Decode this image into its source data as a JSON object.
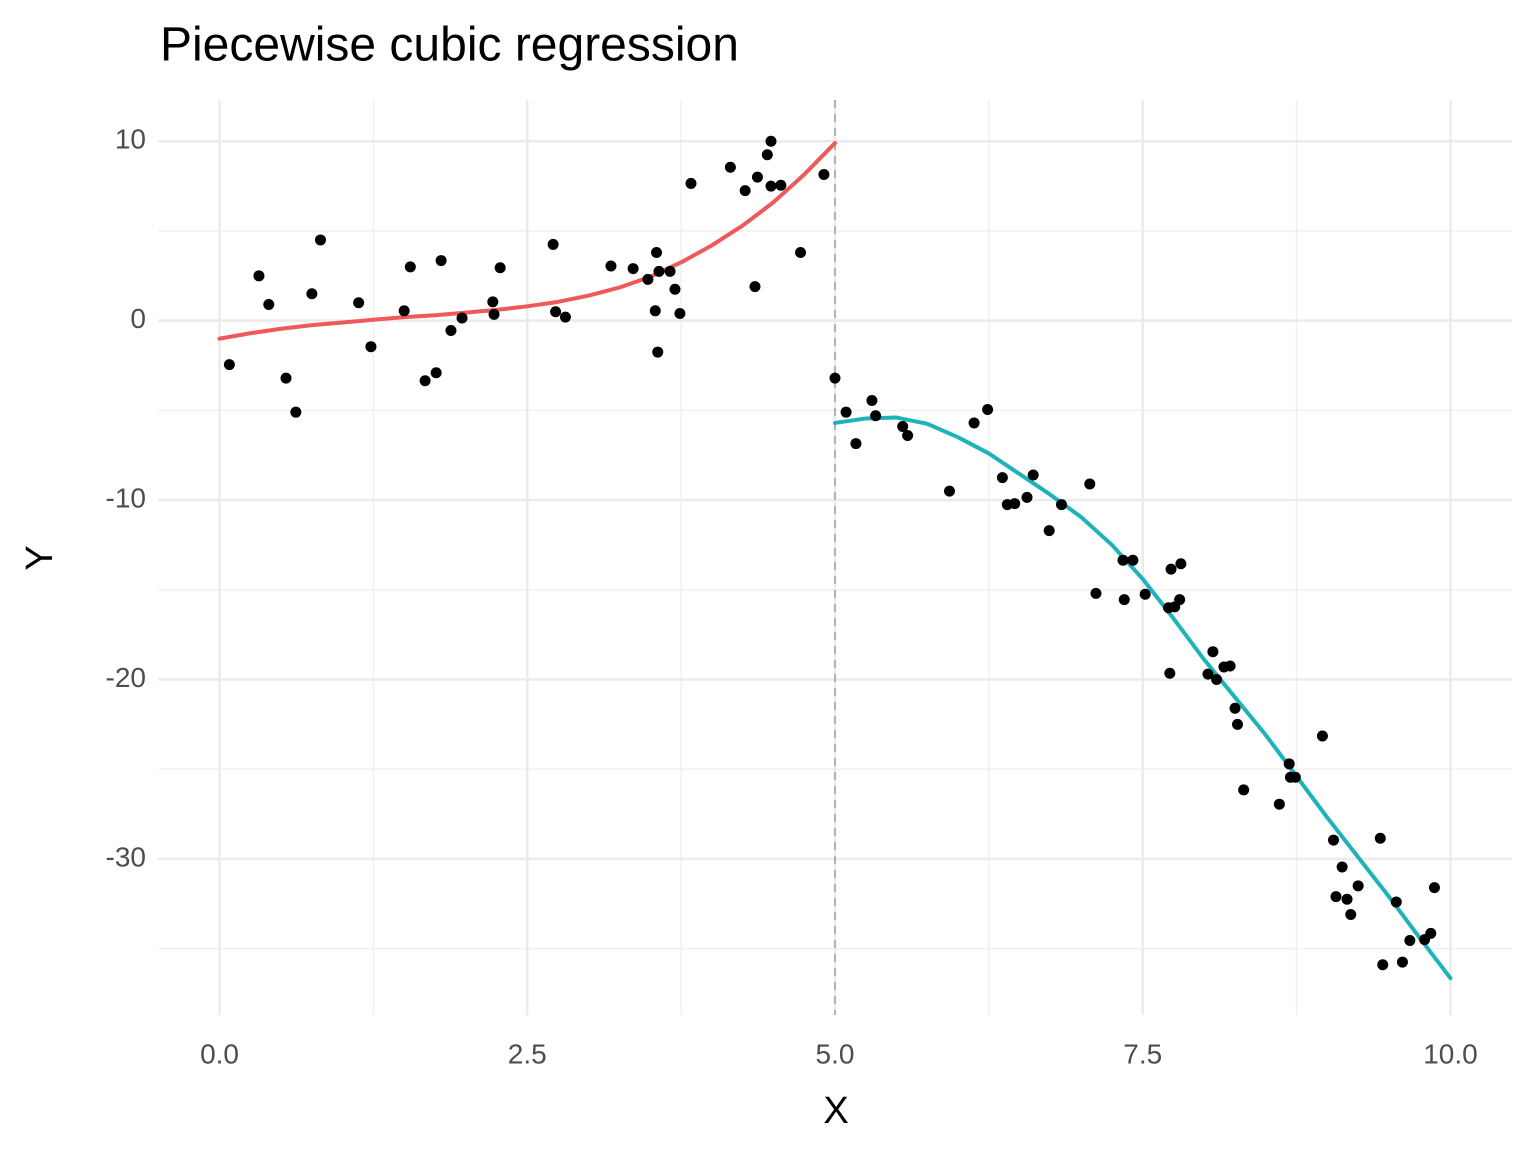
{
  "chart_data": {
    "type": "scatter",
    "title": "Piecewise cubic regression",
    "x_label": "X",
    "y_label": "Y",
    "xlim": [
      -0.5,
      10.5
    ],
    "ylim": [
      -38.7,
      12.3
    ],
    "xticks": [
      {
        "value": 0,
        "label": "0.0"
      },
      {
        "value": 2.5,
        "label": "2.5"
      },
      {
        "value": 5,
        "label": "5.0"
      },
      {
        "value": 7.5,
        "label": "7.5"
      },
      {
        "value": 10,
        "label": "10.0"
      }
    ],
    "yticks": [
      -30,
      -20,
      -10,
      0,
      10
    ],
    "xminor": [
      1.25,
      3.75,
      6.25,
      8.75
    ],
    "yminor": [
      -35,
      -25,
      -15,
      -5,
      5
    ],
    "grid": true,
    "knot": 5,
    "knot_color": "#b3b3b3",
    "points": {
      "color": "#000000",
      "x": [
        0.08,
        0.32,
        0.4,
        0.54,
        0.62,
        0.75,
        0.82,
        1.13,
        1.23,
        1.5,
        1.55,
        1.67,
        1.76,
        1.8,
        1.88,
        1.97,
        2.22,
        2.23,
        2.28,
        2.71,
        2.73,
        2.81,
        3.18,
        3.36,
        3.48,
        3.54,
        3.55,
        3.56,
        3.57,
        3.66,
        3.7,
        3.74,
        3.83,
        4.15,
        4.27,
        4.35,
        4.37,
        4.45,
        4.48,
        4.48,
        4.56,
        4.72,
        4.91,
        5.0,
        5.09,
        5.17,
        5.3,
        5.33,
        5.55,
        5.59,
        5.93,
        6.13,
        6.24,
        6.36,
        6.4,
        6.46,
        6.56,
        6.61,
        6.74,
        6.84,
        7.07,
        7.12,
        7.34,
        7.35,
        7.42,
        7.52,
        7.71,
        7.72,
        7.73,
        7.76,
        7.8,
        7.81,
        8.03,
        8.07,
        8.1,
        8.16,
        8.21,
        8.25,
        8.27,
        8.32,
        8.61,
        8.69,
        8.7,
        8.74,
        8.96,
        9.05,
        9.07,
        9.12,
        9.16,
        9.19,
        9.25,
        9.43,
        9.45,
        9.56,
        9.61,
        9.67,
        9.79,
        9.84,
        9.87
      ],
      "y": [
        -2.45,
        2.5,
        0.9,
        -3.2,
        -5.1,
        1.5,
        4.5,
        1.0,
        -1.45,
        0.55,
        3.0,
        -3.35,
        -2.9,
        3.35,
        -0.55,
        0.15,
        1.05,
        0.35,
        2.95,
        4.25,
        0.5,
        0.2,
        3.05,
        2.9,
        2.3,
        0.55,
        3.8,
        -1.75,
        2.75,
        2.75,
        1.75,
        0.4,
        7.65,
        8.55,
        7.25,
        1.9,
        8.0,
        9.25,
        10.0,
        7.5,
        7.55,
        3.8,
        8.15,
        -3.2,
        -5.1,
        -6.85,
        -4.45,
        -5.3,
        -5.9,
        -6.4,
        -9.5,
        -5.7,
        -4.95,
        -8.75,
        -10.25,
        -10.2,
        -9.85,
        -8.6,
        -11.7,
        -10.25,
        -9.1,
        -15.2,
        -13.35,
        -15.55,
        -13.35,
        -15.25,
        -16.0,
        -19.65,
        -13.85,
        -15.95,
        -15.55,
        -13.55,
        -19.7,
        -18.45,
        -20.0,
        -19.3,
        -19.25,
        -21.6,
        -22.5,
        -26.15,
        -26.95,
        -24.7,
        -25.45,
        -25.45,
        -23.15,
        -28.95,
        -32.1,
        -30.45,
        -32.25,
        -33.1,
        -31.5,
        -28.85,
        -35.9,
        -32.4,
        -35.75,
        -34.55,
        -34.5,
        -34.15,
        -31.6
      ]
    },
    "fits": [
      {
        "color": "#f0595a",
        "x": [
          0,
          0.25,
          0.5,
          0.75,
          1,
          1.25,
          1.5,
          1.75,
          2,
          2.25,
          2.5,
          2.75,
          3,
          3.25,
          3.5,
          3.75,
          4,
          4.25,
          4.5,
          4.75,
          5
        ],
        "y": [
          -1.0,
          -0.7,
          -0.45,
          -0.25,
          -0.1,
          0.05,
          0.2,
          0.3,
          0.45,
          0.6,
          0.8,
          1.05,
          1.4,
          1.85,
          2.45,
          3.25,
          4.2,
          5.3,
          6.6,
          8.15,
          9.9
        ]
      },
      {
        "color": "#1db3b8",
        "x": [
          5,
          5.25,
          5.5,
          5.75,
          6,
          6.25,
          6.5,
          6.75,
          7,
          7.25,
          7.5,
          7.75,
          8,
          8.25,
          8.5,
          8.75,
          9,
          9.25,
          9.5,
          9.75,
          10
        ],
        "y": [
          -5.7,
          -5.45,
          -5.4,
          -5.75,
          -6.5,
          -7.4,
          -8.55,
          -9.7,
          -10.95,
          -12.5,
          -14.4,
          -16.6,
          -18.9,
          -21.0,
          -23.1,
          -25.4,
          -27.7,
          -29.9,
          -32.1,
          -34.4,
          -36.65
        ]
      }
    ]
  }
}
